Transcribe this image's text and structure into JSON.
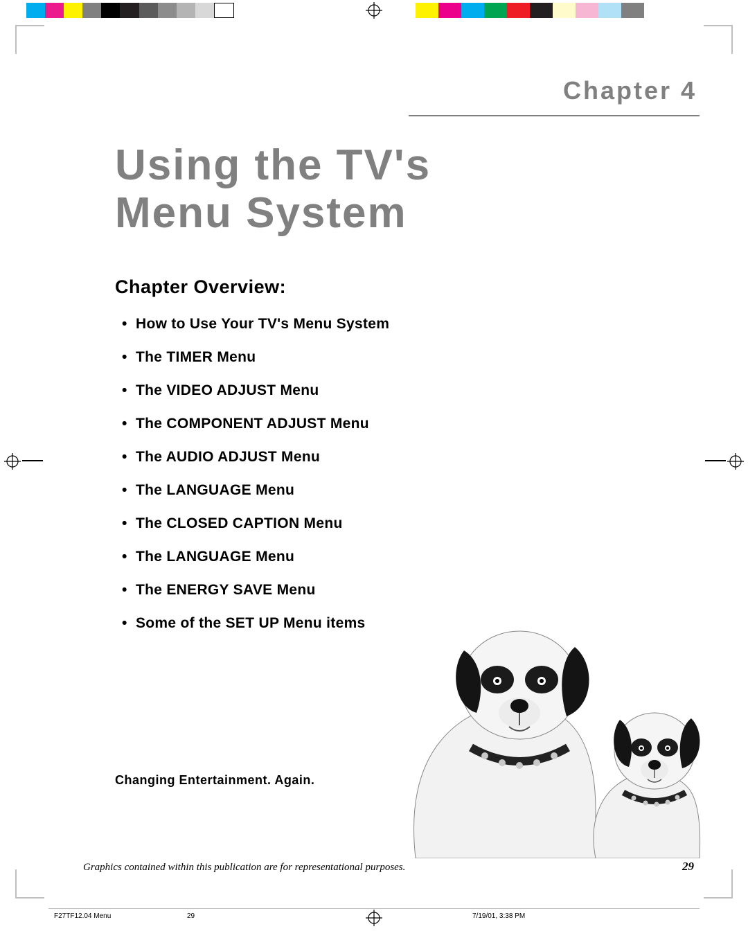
{
  "registration": {
    "left_swatches": [
      "#00adee",
      "#ec1b8d",
      "#fef200",
      "#808080",
      "#000000",
      "#231f20",
      "#5b5b5b",
      "#8c8c8c",
      "#b4b4b4",
      "#d8d8d8",
      "#ffffff"
    ],
    "right_swatches": [
      "#fef200",
      "#ec008b",
      "#00adee",
      "#00a551",
      "#ee1c24",
      "#231f20",
      "#fffbcb",
      "#f6b6d4",
      "#b0e1f6",
      "#808080"
    ]
  },
  "chapter": {
    "label": "Chapter 4",
    "title_line1": "Using the TV's",
    "title_line2": "Menu System"
  },
  "overview": {
    "heading": "Chapter Overview:",
    "items": [
      "How to Use Your TV's Menu System",
      "The TIMER Menu",
      "The VIDEO ADJUST Menu",
      "The COMPONENT ADJUST Menu",
      "The AUDIO ADJUST Menu",
      "The LANGUAGE Menu",
      "The CLOSED CAPTION Menu",
      "The LANGUAGE Menu",
      "The ENERGY SAVE Menu",
      "Some of the SET UP Menu items"
    ]
  },
  "tagline": "Changing Entertainment. Again.",
  "footer": {
    "disclaimer": "Graphics contained within this publication are for representational purposes.",
    "page_number": "29"
  },
  "print_info": {
    "file": "F27TF12.04 Menu",
    "page": "29",
    "datetime": "7/19/01, 3:38 PM"
  }
}
